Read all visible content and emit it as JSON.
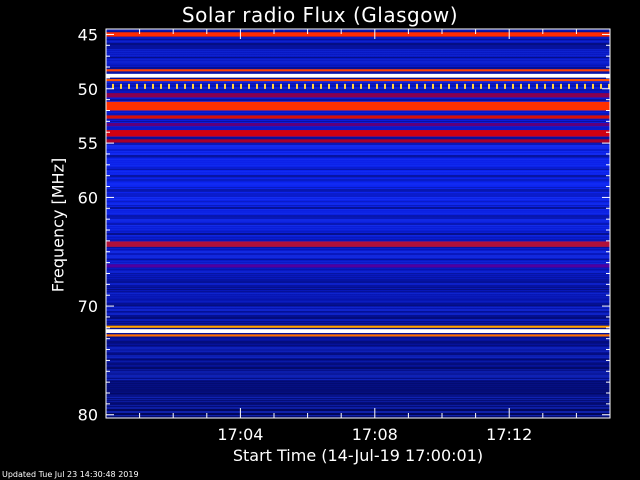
{
  "chart_data": {
    "type": "heatmap",
    "title": "Solar radio Flux (Glasgow)",
    "xlabel": "Start Time (14-Jul-19 17:00:01)",
    "ylabel": "Frequency [MHz]",
    "x_ticks": [
      "17:04",
      "17:08",
      "17:12"
    ],
    "x_tick_minutes": [
      4,
      8,
      12
    ],
    "x_range_minutes": [
      0,
      15
    ],
    "y_ticks": [
      45,
      50,
      55,
      60,
      70,
      80
    ],
    "y_range_mhz": [
      44.5,
      80.3
    ],
    "colormap": "black-blue-red-yellow-white",
    "bands": [
      {
        "freq": 45.0,
        "width": 0.4,
        "color": "#ff2a00"
      },
      {
        "freq": 48.8,
        "width": 0.35,
        "color": "#ffffff"
      },
      {
        "freq": 48.3,
        "width": 0.2,
        "color": "#ff4000"
      },
      {
        "freq": 49.2,
        "width": 0.2,
        "color": "#ff5000"
      },
      {
        "freq": 50.6,
        "width": 0.4,
        "color": "#8a0050"
      },
      {
        "freq": 51.6,
        "width": 0.8,
        "color": "#ff3000"
      },
      {
        "freq": 52.6,
        "width": 0.3,
        "color": "#d81008"
      },
      {
        "freq": 53.3,
        "width": 0.3,
        "color": "#60007a"
      },
      {
        "freq": 54.1,
        "width": 0.6,
        "color": "#d00010"
      },
      {
        "freq": 54.8,
        "width": 0.3,
        "color": "#a8002a"
      },
      {
        "freq": 64.3,
        "width": 0.5,
        "color": "#b0103a"
      },
      {
        "freq": 66.3,
        "width": 0.3,
        "color": "#5000a0"
      },
      {
        "freq": 72.3,
        "width": 0.35,
        "color": "#ffffff"
      },
      {
        "freq": 71.9,
        "width": 0.2,
        "color": "#ffa000"
      },
      {
        "freq": 72.7,
        "width": 0.2,
        "color": "#ff7000"
      }
    ]
  },
  "footer": {
    "updated": "Updated Tue Jul 23 14:30:48 2019"
  },
  "colors": {
    "background": "#000000",
    "base_blue": "#0a1ad8",
    "text": "#ffffff"
  }
}
